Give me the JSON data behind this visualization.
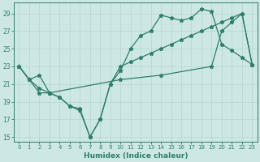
{
  "xlabel": "Humidex (Indice chaleur)",
  "bg_color": "#cde8e4",
  "line_color": "#2e7d6e",
  "grid_color": "#b8d8d4",
  "xlim_min": -0.5,
  "xlim_max": 23.5,
  "ylim_min": 14.5,
  "ylim_max": 30.2,
  "yticks": [
    15,
    17,
    19,
    21,
    23,
    25,
    27,
    29
  ],
  "xticks": [
    0,
    1,
    2,
    3,
    4,
    5,
    6,
    7,
    8,
    9,
    10,
    11,
    12,
    13,
    14,
    15,
    16,
    17,
    18,
    19,
    20,
    21,
    22,
    23
  ],
  "line1_x": [
    0,
    1,
    2,
    3,
    4,
    5,
    6,
    7,
    8,
    9,
    10,
    11,
    12,
    13,
    14,
    15,
    16,
    17,
    18,
    19,
    20,
    21,
    22,
    23
  ],
  "line1_y": [
    23,
    21.5,
    20,
    20,
    19.5,
    18.5,
    18,
    15,
    17,
    21,
    23,
    23.5,
    24,
    24.5,
    25,
    25.5,
    26,
    26.5,
    27,
    27.5,
    28,
    28.5,
    29,
    23.2
  ],
  "line2_x": [
    0,
    1,
    2,
    3,
    4,
    5,
    6,
    7,
    8,
    9,
    10,
    11,
    12,
    13,
    14,
    15,
    16,
    17,
    18,
    19,
    20,
    21,
    22,
    23
  ],
  "line2_y": [
    23,
    21.5,
    20.5,
    20,
    19.5,
    18.5,
    18.2,
    15,
    17,
    21,
    22.5,
    25,
    26.5,
    27,
    28.8,
    28.5,
    28.2,
    28.5,
    29.5,
    29.2,
    25.5,
    24.8,
    24,
    23.2
  ],
  "line3_x": [
    0,
    1,
    2,
    3,
    10,
    14,
    19,
    20,
    21,
    22,
    23
  ],
  "line3_y": [
    23,
    21.5,
    22,
    20,
    21.5,
    22,
    23,
    27,
    28,
    29,
    23.2
  ]
}
